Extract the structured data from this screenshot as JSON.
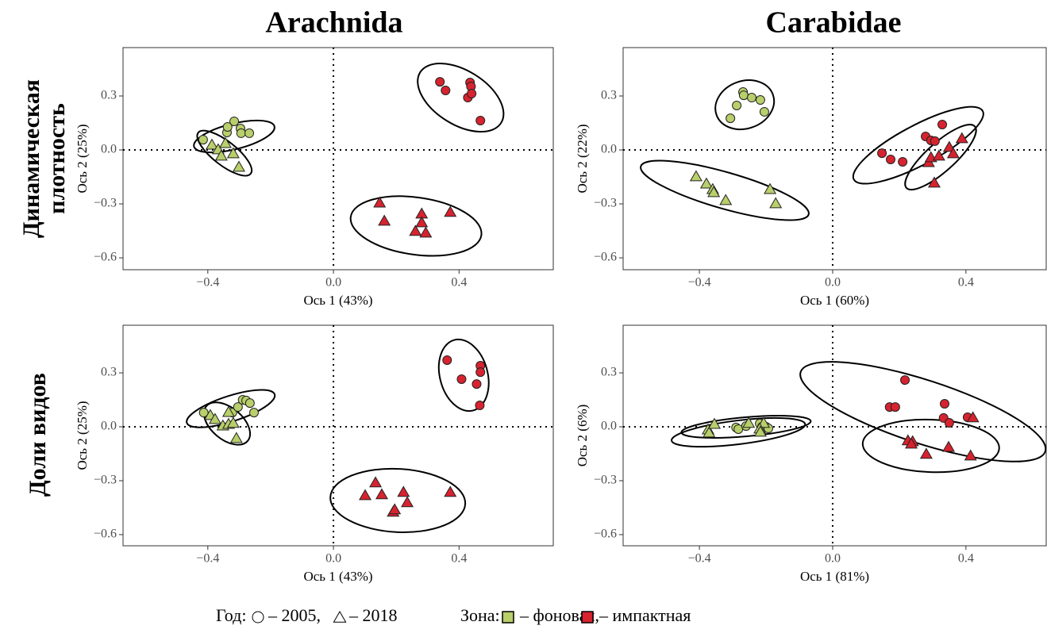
{
  "column_titles": [
    "Arachnida",
    "Carabidae"
  ],
  "row_titles": [
    [
      "Динамическая",
      "плотность"
    ],
    [
      "Доли видов"
    ]
  ],
  "legend": {
    "year_label": "Год:",
    "years": [
      {
        "marker": "circle",
        "label": "– 2005,"
      },
      {
        "marker": "triangle",
        "label": "– 2018"
      }
    ],
    "zone_label": "Зона:",
    "zones": [
      {
        "color": "#b8cf6b",
        "label": "– фоновая,"
      },
      {
        "color": "#d7232f",
        "label": "– импактная"
      }
    ]
  },
  "chart_data": [
    {
      "type": "scatter",
      "xlabel": "Ось 1 (43%)",
      "ylabel": "Ось 2 (25%)",
      "xlim": [
        -0.67,
        0.7
      ],
      "ylim": [
        -0.666,
        0.569
      ],
      "xticks": [
        {
          "value": -0.4,
          "label": "−0.4"
        },
        {
          "value": 0,
          "label": "0.0"
        },
        {
          "value": 0.4,
          "label": "0.4"
        }
      ],
      "yticks": [
        {
          "value": 0.3,
          "label": "0.3"
        },
        {
          "value": 0,
          "label": "0.0"
        },
        {
          "value": -0.3,
          "label": "−0.3"
        },
        {
          "value": -0.6,
          "label": "−0.6"
        }
      ],
      "series": [
        {
          "marker": "circle",
          "color": "#b8cf6b",
          "x": [
            -0.415,
            -0.339,
            -0.337,
            -0.316,
            -0.296,
            -0.294,
            -0.268
          ],
          "values": [
            0.057,
            0.097,
            0.128,
            0.159,
            0.119,
            0.093,
            0.093
          ]
        },
        {
          "marker": "triangle",
          "color": "#b8cf6b",
          "x": [
            -0.387,
            -0.367,
            -0.344,
            -0.357,
            -0.319,
            -0.301
          ],
          "values": [
            0.026,
            0.0,
            0.035,
            -0.035,
            -0.022,
            -0.097
          ]
        },
        {
          "marker": "circle",
          "color": "#d7232f",
          "x": [
            0.339,
            0.357,
            0.435,
            0.438,
            0.428,
            0.44,
            0.468
          ],
          "values": [
            0.379,
            0.331,
            0.375,
            0.353,
            0.291,
            0.313,
            0.163
          ]
        },
        {
          "marker": "triangle",
          "color": "#d7232f",
          "x": [
            0.147,
            0.162,
            0.281,
            0.281,
            0.261,
            0.294,
            0.372
          ],
          "values": [
            -0.296,
            -0.397,
            -0.357,
            -0.406,
            -0.454,
            -0.463,
            -0.348
          ]
        }
      ],
      "ellipses": [
        {
          "cx": -0.316,
          "cy": 0.075,
          "rx": 0.132,
          "ry": 0.071,
          "angle": -14
        },
        {
          "cx": -0.347,
          "cy": -0.018,
          "rx": 0.106,
          "ry": 0.066,
          "angle": 38
        },
        {
          "cx": 0.405,
          "cy": 0.291,
          "rx": 0.152,
          "ry": 0.15,
          "angle": 32
        },
        {
          "cx": 0.263,
          "cy": -0.423,
          "rx": 0.21,
          "ry": 0.159,
          "angle": 8
        }
      ]
    },
    {
      "type": "scatter",
      "xlabel": "Ось 1 (60%)",
      "ylabel": "Ось 2 (22%)",
      "xlim": [
        -0.629,
        0.641
      ],
      "ylim": [
        -0.666,
        0.569
      ],
      "xticks": [
        {
          "value": -0.4,
          "label": "−0.4"
        },
        {
          "value": 0,
          "label": "0.0"
        },
        {
          "value": 0.4,
          "label": "0.4"
        }
      ],
      "yticks": [
        {
          "value": 0.3,
          "label": "0.3"
        },
        {
          "value": 0,
          "label": "0.0"
        },
        {
          "value": -0.3,
          "label": "−0.3"
        },
        {
          "value": -0.6,
          "label": "−0.6"
        }
      ],
      "series": [
        {
          "marker": "circle",
          "color": "#b8cf6b",
          "x": [
            -0.307,
            -0.288,
            -0.269,
            -0.267,
            -0.243,
            -0.217,
            -0.205
          ],
          "values": [
            0.176,
            0.247,
            0.322,
            0.304,
            0.291,
            0.278,
            0.212
          ]
        },
        {
          "marker": "triangle",
          "color": "#b8cf6b",
          "x": [
            -0.41,
            -0.379,
            -0.36,
            -0.357,
            -0.321,
            -0.188,
            -0.171
          ],
          "values": [
            -0.15,
            -0.19,
            -0.221,
            -0.238,
            -0.282,
            -0.221,
            -0.3
          ]
        },
        {
          "marker": "circle",
          "color": "#d7232f",
          "x": [
            0.148,
            0.174,
            0.21,
            0.279,
            0.295,
            0.307,
            0.329
          ],
          "values": [
            -0.018,
            -0.053,
            -0.066,
            0.075,
            0.053,
            0.049,
            0.141
          ]
        },
        {
          "marker": "triangle",
          "color": "#d7232f",
          "x": [
            0.288,
            0.295,
            0.319,
            0.35,
            0.362,
            0.388,
            0.305
          ],
          "values": [
            -0.071,
            -0.044,
            -0.035,
            0.013,
            -0.022,
            0.062,
            -0.185
          ]
        }
      ],
      "ellipses": [
        {
          "cx": -0.264,
          "cy": 0.251,
          "rx": 0.09,
          "ry": 0.132,
          "angle": -20
        },
        {
          "cx": -0.324,
          "cy": -0.225,
          "rx": 0.262,
          "ry": 0.101,
          "angle": 16
        },
        {
          "cx": 0.257,
          "cy": 0.026,
          "rx": 0.219,
          "ry": 0.11,
          "angle": -28
        },
        {
          "cx": 0.324,
          "cy": -0.04,
          "rx": 0.138,
          "ry": 0.079,
          "angle": -42
        }
      ]
    },
    {
      "type": "scatter",
      "xlabel": "Ось 1 (43%)",
      "ylabel": "Ось 2 (25%)",
      "xlim": [
        -0.67,
        0.7
      ],
      "ylim": [
        -0.662,
        0.565
      ],
      "xticks": [
        {
          "value": -0.4,
          "label": "−0.4"
        },
        {
          "value": 0,
          "label": "0.0"
        },
        {
          "value": 0.4,
          "label": "0.4"
        }
      ],
      "yticks": [
        {
          "value": 0.3,
          "label": "0.3"
        },
        {
          "value": 0,
          "label": "0.0"
        },
        {
          "value": -0.3,
          "label": "−0.3"
        },
        {
          "value": -0.6,
          "label": "−0.6"
        }
      ],
      "series": [
        {
          "marker": "circle",
          "color": "#b8cf6b",
          "x": [
            -0.413,
            -0.322,
            -0.304,
            -0.289,
            -0.278,
            -0.266,
            -0.253
          ],
          "values": [
            0.079,
            0.079,
            0.11,
            0.15,
            0.146,
            0.132,
            0.079
          ]
        },
        {
          "marker": "triangle",
          "color": "#b8cf6b",
          "x": [
            -0.392,
            -0.377,
            -0.352,
            -0.334,
            -0.334,
            -0.319,
            -0.309
          ],
          "values": [
            0.062,
            0.04,
            0.004,
            0.013,
            0.079,
            0.018,
            -0.066
          ]
        },
        {
          "marker": "circle",
          "color": "#d7232f",
          "x": [
            0.362,
            0.408,
            0.456,
            0.468,
            0.468,
            0.466
          ],
          "values": [
            0.371,
            0.265,
            0.238,
            0.34,
            0.304,
            0.119
          ]
        },
        {
          "marker": "triangle",
          "color": "#d7232f",
          "x": [
            0.101,
            0.134,
            0.154,
            0.223,
            0.235,
            0.19,
            0.195,
            0.372
          ],
          "values": [
            -0.384,
            -0.313,
            -0.379,
            -0.366,
            -0.423,
            -0.476,
            -0.463,
            -0.366
          ]
        }
      ],
      "ellipses": [
        {
          "cx": -0.327,
          "cy": 0.101,
          "rx": 0.147,
          "ry": 0.071,
          "angle": -18
        },
        {
          "cx": -0.339,
          "cy": 0.018,
          "rx": 0.086,
          "ry": 0.088,
          "angle": 40
        },
        {
          "cx": 0.415,
          "cy": 0.287,
          "rx": 0.076,
          "ry": 0.203,
          "angle": -15
        },
        {
          "cx": 0.205,
          "cy": -0.41,
          "rx": 0.215,
          "ry": 0.176,
          "angle": 3
        }
      ]
    },
    {
      "type": "scatter",
      "xlabel": "Ось 1 (81%)",
      "ylabel": "Ось 2 (6%)",
      "xlim": [
        -0.629,
        0.641
      ],
      "ylim": [
        -0.662,
        0.565
      ],
      "xticks": [
        {
          "value": -0.4,
          "label": "−0.4"
        },
        {
          "value": 0,
          "label": "0.0"
        },
        {
          "value": 0.4,
          "label": "0.4"
        }
      ],
      "yticks": [
        {
          "value": 0.3,
          "label": "0.3"
        },
        {
          "value": 0,
          "label": "0.0"
        },
        {
          "value": -0.3,
          "label": "−0.3"
        },
        {
          "value": -0.6,
          "label": "−0.6"
        }
      ],
      "series": [
        {
          "marker": "circle",
          "color": "#b8cf6b",
          "x": [
            -0.29,
            -0.283,
            -0.26,
            -0.219,
            -0.212,
            -0.2,
            -0.193
          ],
          "values": [
            -0.004,
            -0.013,
            0.004,
            0.018,
            0.0,
            0.0,
            -0.009
          ]
        },
        {
          "marker": "triangle",
          "color": "#b8cf6b",
          "x": [
            -0.374,
            -0.371,
            -0.355,
            -0.252,
            -0.207,
            -0.219,
            -0.217
          ],
          "values": [
            -0.018,
            -0.035,
            0.013,
            0.018,
            0.018,
            -0.013,
            -0.031
          ]
        },
        {
          "marker": "circle",
          "color": "#d7232f",
          "x": [
            0.171,
            0.188,
            0.217,
            0.336,
            0.333,
            0.35,
            0.405
          ],
          "values": [
            0.11,
            0.11,
            0.26,
            0.128,
            0.049,
            0.022,
            0.053
          ]
        },
        {
          "marker": "triangle",
          "color": "#d7232f",
          "x": [
            0.226,
            0.24,
            0.236,
            0.281,
            0.348,
            0.414,
            0.421
          ],
          "values": [
            -0.079,
            -0.084,
            -0.097,
            -0.154,
            -0.115,
            -0.163,
            0.049
          ]
        }
      ],
      "ellipses": [
        {
          "cx": -0.26,
          "cy": 0.0,
          "rx": 0.195,
          "ry": 0.053,
          "angle": -5
        },
        {
          "cx": -0.283,
          "cy": -0.031,
          "rx": 0.202,
          "ry": 0.066,
          "angle": -7
        },
        {
          "cx": 0.271,
          "cy": 0.084,
          "rx": 0.386,
          "ry": 0.176,
          "angle": 18
        },
        {
          "cx": 0.295,
          "cy": -0.106,
          "rx": 0.205,
          "ry": 0.146,
          "angle": 2
        }
      ]
    }
  ]
}
